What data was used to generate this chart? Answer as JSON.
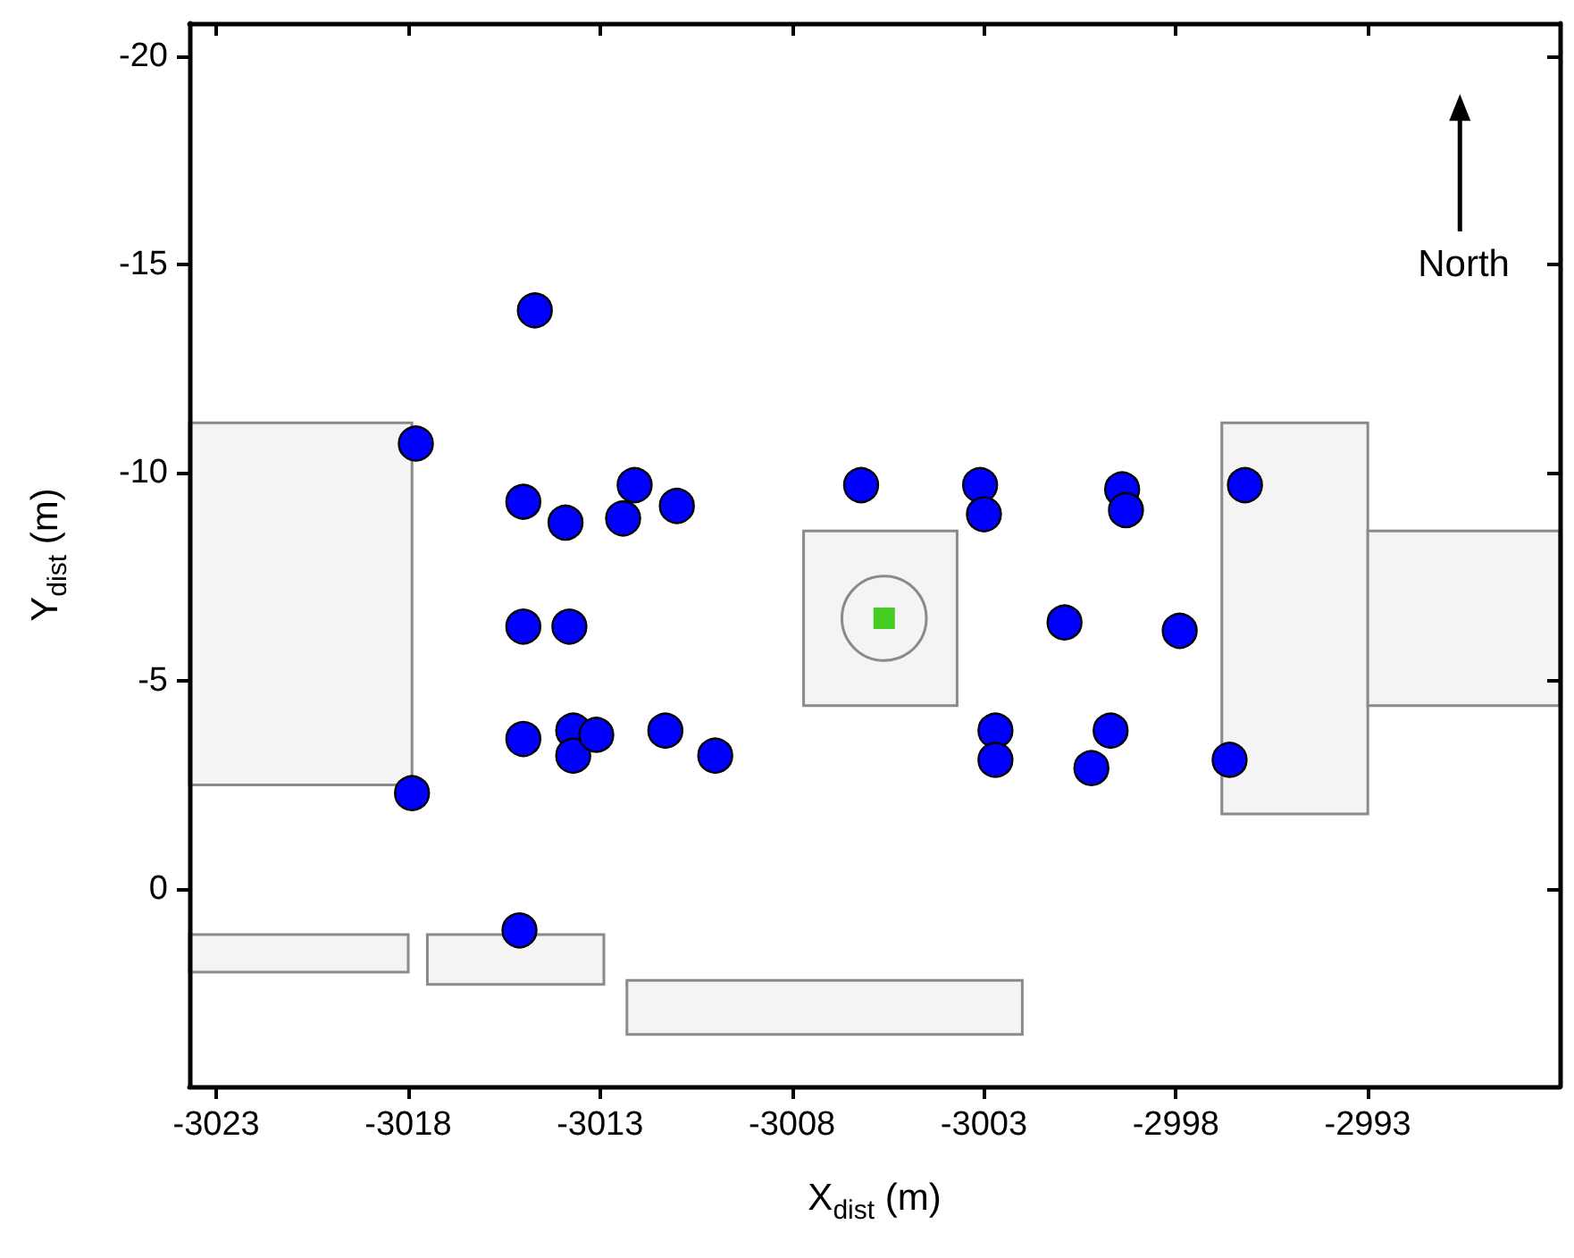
{
  "chart_data": {
    "type": "scatter",
    "xlabel": "X$_{dist}$ (m)",
    "ylabel": "Y$_{dist}$ (m)",
    "xlim": [
      -3023.7,
      -2988
    ],
    "xticks": [
      -3023,
      -3018,
      -3013,
      -3008,
      -3003,
      -2998,
      -2993
    ],
    "ylim": [
      4.75,
      -20.8
    ],
    "yticks": [
      -20,
      -15,
      -10,
      -5,
      0
    ],
    "marker": "circle",
    "annotations": [
      "North"
    ],
    "series": [
      {
        "color": "#0000ff",
        "x": [
          -3014.7,
          -3017.8,
          -3015.0,
          -3013.9,
          -3012.1,
          -3012.4,
          -3011.0,
          -3006.2,
          -3003.1,
          -3003.0,
          -2999.4,
          -2999.3,
          -2996.2,
          -3000.9,
          -2997.9,
          -3015.0,
          -3013.8,
          -3015.0,
          -3013.7,
          -3013.7,
          -3013.1,
          -3011.3,
          -3010.0,
          -3017.9,
          -3015.1,
          -3002.7,
          -3002.7,
          -2999.7,
          -3000.2,
          -2996.6
        ],
        "values": [
          -13.9,
          -10.7,
          -9.3,
          -8.8,
          -9.7,
          -8.9,
          -9.2,
          -9.7,
          -9.7,
          -9.0,
          -9.6,
          -9.1,
          -9.7,
          -6.4,
          -6.2,
          -6.3,
          -6.3,
          -3.6,
          -3.8,
          -3.2,
          -3.7,
          -3.8,
          -3.2,
          -2.3,
          1.0,
          -3.8,
          -3.1,
          -3.8,
          -2.9,
          -3.1
        ]
      },
      {
        "color": "#44cc22",
        "marker": "square",
        "x": [
          -3005.6
        ],
        "values": [
          -6.5
        ]
      }
    ]
  }
}
